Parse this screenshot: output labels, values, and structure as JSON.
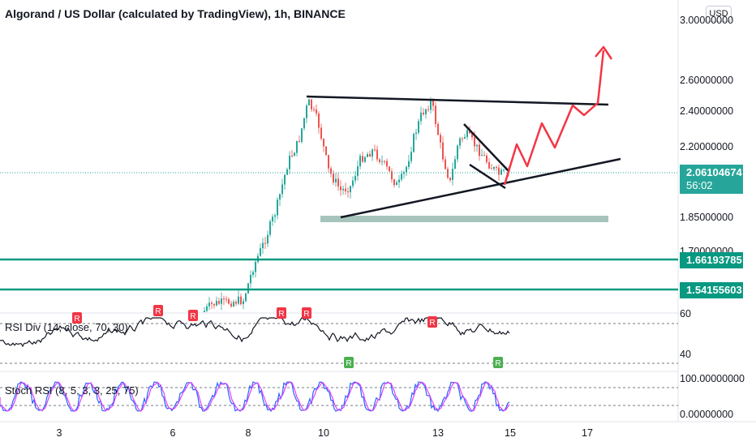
{
  "chart_data": {
    "type": "candlestick",
    "title": "Algorand / US Dollar (calculated by TradingView), 1h, BINANCE",
    "currency_button": "USD",
    "price_axis": {
      "ticks": [
        "3.00000000",
        "2.60000000",
        "2.40000000",
        "2.20000000",
        "1.85000000",
        "1.70000000"
      ],
      "scale": "log"
    },
    "current_price": {
      "value": "2.06104674",
      "countdown": "56:02",
      "color": "#26a69a"
    },
    "horizontal_levels": [
      {
        "value": "1.66193785",
        "color": "#089981"
      },
      {
        "value": "1.54155603",
        "color": "#089981"
      }
    ],
    "support_zone": {
      "value": 1.85,
      "color": "#a7c4bc"
    },
    "x_axis": {
      "ticks": [
        "3",
        "6",
        "8",
        "10",
        "13",
        "15",
        "17"
      ]
    },
    "rsi_divergence": {
      "label": "RSI Div (14, close, 70, 30)",
      "ticks": [
        "60",
        "40"
      ],
      "upper": 70,
      "lower": 30,
      "bearish_marker": "R",
      "bullish_marker": "R",
      "bear_color": "#f23645",
      "bull_color": "#4caf50"
    },
    "stoch_rsi": {
      "label": "Stoch RSI (8, 5, 3, 3, 25, 75)",
      "ticks": [
        "100.00000000",
        "0.00000000"
      ],
      "upper": 75,
      "lower": 25
    },
    "colors": {
      "up": "#26a69a",
      "down": "#ef5350",
      "projection": "#f23645",
      "trendline": "#131722"
    }
  }
}
